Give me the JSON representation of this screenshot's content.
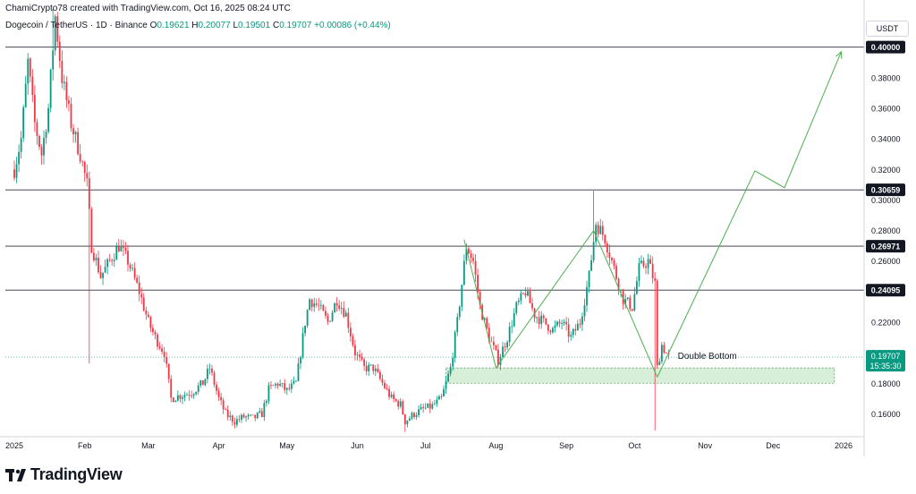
{
  "header": {
    "author_line": "ChamiCrypto78 created with TradingView.com, Oct 16, 2025 08:24 UTC",
    "symbol": "Dogecoin / TetherUS · 1D · Binance",
    "ohlc": {
      "o_label": "O",
      "o_value": "0.19621",
      "h_label": "H",
      "h_value": "0.20077",
      "l_label": "L",
      "l_value": "0.19501",
      "c_label": "C",
      "c_value": "0.19707",
      "change": "+0.00086 (+0.44%)"
    }
  },
  "currency_badge": "USDT",
  "logo_text": "TradingView",
  "colors": {
    "up": "#089981",
    "down": "#f23645",
    "projection": "#4caf50",
    "zone_fill": "#d7eed9",
    "price_badge": "#089981"
  },
  "chart_data": {
    "type": "candlestick",
    "symbol": "DOGE/USDT",
    "ylim": [
      0.145,
      0.425
    ],
    "y_ticks": [
      "0.16000",
      "0.18000",
      "0.20000",
      "0.22000",
      "0.26000",
      "0.28000",
      "0.30000",
      "0.32000",
      "0.34000",
      "0.36000",
      "0.38000"
    ],
    "x_ticks": [
      {
        "label": "2025",
        "date": "2025-01-01"
      },
      {
        "label": "Feb",
        "date": "2025-02-01"
      },
      {
        "label": "Mar",
        "date": "2025-03-01"
      },
      {
        "label": "Apr",
        "date": "2025-04-01"
      },
      {
        "label": "May",
        "date": "2025-05-01"
      },
      {
        "label": "Jun",
        "date": "2025-06-01"
      },
      {
        "label": "Jul",
        "date": "2025-07-01"
      },
      {
        "label": "Aug",
        "date": "2025-08-01"
      },
      {
        "label": "Sep",
        "date": "2025-09-01"
      },
      {
        "label": "Oct",
        "date": "2025-10-01"
      },
      {
        "label": "Nov",
        "date": "2025-11-01"
      },
      {
        "label": "Dec",
        "date": "2025-12-01"
      },
      {
        "label": "2026",
        "date": "2026-01-01"
      }
    ],
    "levels": [
      {
        "value": 0.4,
        "label": "0.40000"
      },
      {
        "value": 0.30659,
        "label": "0.30659"
      },
      {
        "value": 0.26971,
        "label": "0.26971"
      },
      {
        "value": 0.24095,
        "label": "0.24095"
      }
    ],
    "current_price": {
      "value": 0.19707,
      "label": "0.19707",
      "countdown": "15:35:30"
    },
    "zone": {
      "start": "2025-07-10",
      "end": "2025-12-28",
      "low": 0.18,
      "high": 0.19
    },
    "annotation": {
      "text": "Double Bottom",
      "date": "2025-10-20",
      "value": 0.196
    },
    "pattern_lines": [
      {
        "points": [
          [
            "2025-07-18",
            0.274
          ],
          [
            "2025-08-01",
            0.19
          ],
          [
            "2025-09-13",
            0.28
          ],
          [
            "2025-10-11",
            0.184
          ]
        ]
      }
    ],
    "projection": [
      [
        "2025-10-11",
        0.184
      ],
      [
        "2025-11-23",
        0.319
      ],
      [
        "2025-12-06",
        0.308
      ],
      [
        "2025-12-31",
        0.397
      ]
    ],
    "price_path": [
      [
        "2025-01-01",
        0.32
      ],
      [
        "2025-01-04",
        0.34
      ],
      [
        "2025-01-07",
        0.39
      ],
      [
        "2025-01-10",
        0.35
      ],
      [
        "2025-01-13",
        0.33
      ],
      [
        "2025-01-16",
        0.36
      ],
      [
        "2025-01-19",
        0.42
      ],
      [
        "2025-01-22",
        0.38
      ],
      [
        "2025-01-26",
        0.35
      ],
      [
        "2025-01-30",
        0.33
      ],
      [
        "2025-02-02",
        0.31
      ],
      [
        "2025-02-04",
        0.27
      ],
      [
        "2025-02-08",
        0.25
      ],
      [
        "2025-02-12",
        0.26
      ],
      [
        "2025-02-16",
        0.27
      ],
      [
        "2025-02-20",
        0.26
      ],
      [
        "2025-02-25",
        0.24
      ],
      [
        "2025-03-01",
        0.22
      ],
      [
        "2025-03-04",
        0.21
      ],
      [
        "2025-03-08",
        0.2
      ],
      [
        "2025-03-11",
        0.17
      ],
      [
        "2025-03-15",
        0.172
      ],
      [
        "2025-03-20",
        0.174
      ],
      [
        "2025-03-25",
        0.18
      ],
      [
        "2025-03-28",
        0.19
      ],
      [
        "2025-04-01",
        0.17
      ],
      [
        "2025-04-04",
        0.16
      ],
      [
        "2025-04-08",
        0.155
      ],
      [
        "2025-04-12",
        0.158
      ],
      [
        "2025-04-16",
        0.157
      ],
      [
        "2025-04-20",
        0.16
      ],
      [
        "2025-04-23",
        0.176
      ],
      [
        "2025-04-27",
        0.18
      ],
      [
        "2025-05-01",
        0.175
      ],
      [
        "2025-05-05",
        0.18
      ],
      [
        "2025-05-09",
        0.22
      ],
      [
        "2025-05-11",
        0.235
      ],
      [
        "2025-05-15",
        0.23
      ],
      [
        "2025-05-19",
        0.22
      ],
      [
        "2025-05-23",
        0.235
      ],
      [
        "2025-05-27",
        0.225
      ],
      [
        "2025-05-31",
        0.2
      ],
      [
        "2025-06-04",
        0.19
      ],
      [
        "2025-06-08",
        0.19
      ],
      [
        "2025-06-12",
        0.18
      ],
      [
        "2025-06-16",
        0.17
      ],
      [
        "2025-06-20",
        0.166
      ],
      [
        "2025-06-22",
        0.155
      ],
      [
        "2025-06-26",
        0.16
      ],
      [
        "2025-06-30",
        0.163
      ],
      [
        "2025-07-04",
        0.165
      ],
      [
        "2025-07-08",
        0.17
      ],
      [
        "2025-07-12",
        0.19
      ],
      [
        "2025-07-15",
        0.22
      ],
      [
        "2025-07-19",
        0.27
      ],
      [
        "2025-07-22",
        0.26
      ],
      [
        "2025-07-25",
        0.23
      ],
      [
        "2025-07-29",
        0.21
      ],
      [
        "2025-08-02",
        0.195
      ],
      [
        "2025-08-06",
        0.21
      ],
      [
        "2025-08-10",
        0.23
      ],
      [
        "2025-08-14",
        0.24
      ],
      [
        "2025-08-18",
        0.225
      ],
      [
        "2025-08-22",
        0.22
      ],
      [
        "2025-08-26",
        0.215
      ],
      [
        "2025-08-30",
        0.22
      ],
      [
        "2025-09-03",
        0.21
      ],
      [
        "2025-09-07",
        0.22
      ],
      [
        "2025-09-11",
        0.25
      ],
      [
        "2025-09-14",
        0.285
      ],
      [
        "2025-09-18",
        0.275
      ],
      [
        "2025-09-22",
        0.255
      ],
      [
        "2025-09-26",
        0.235
      ],
      [
        "2025-09-30",
        0.23
      ],
      [
        "2025-10-03",
        0.255
      ],
      [
        "2025-10-07",
        0.26
      ],
      [
        "2025-10-10",
        0.245
      ],
      [
        "2025-10-11",
        0.19
      ],
      [
        "2025-10-13",
        0.205
      ],
      [
        "2025-10-16",
        0.197
      ]
    ]
  }
}
